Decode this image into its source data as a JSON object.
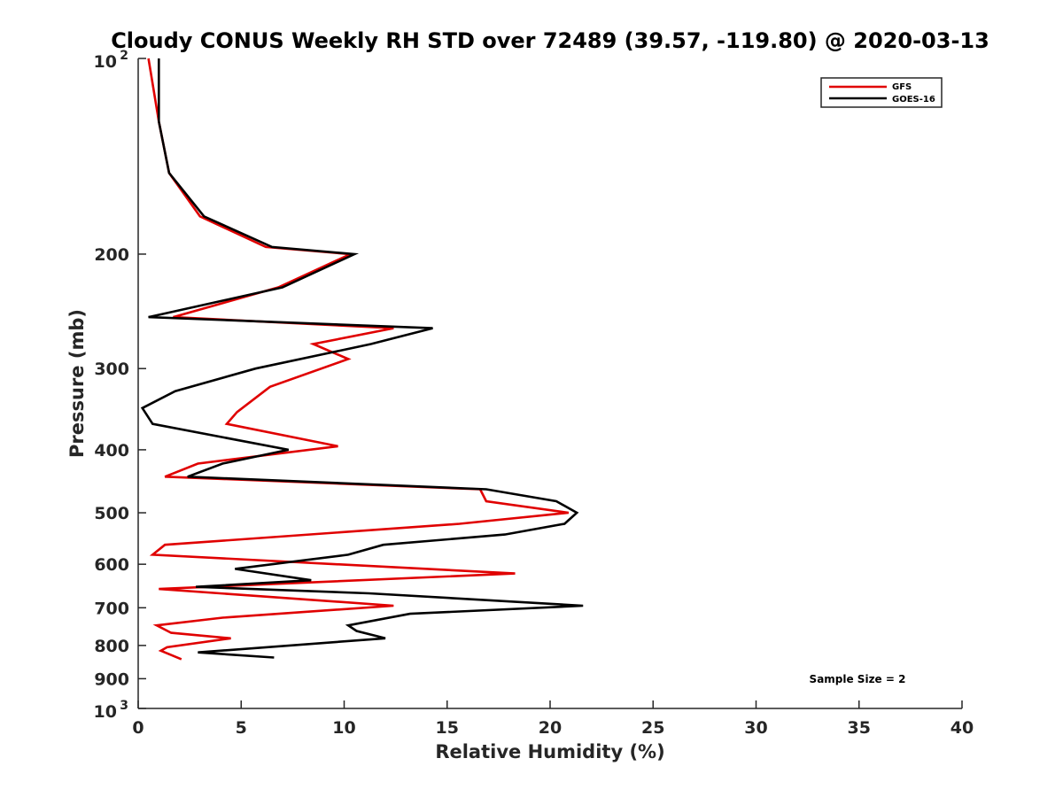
{
  "chart_data": {
    "type": "line",
    "title": "Cloudy CONUS Weekly RH STD over 72489 (39.57, -119.80) @ 2020-03-13",
    "xlabel": "Relative Humidity (%)",
    "ylabel": "Pressure (mb)",
    "xlim": [
      0,
      40
    ],
    "ylim": [
      100,
      1000
    ],
    "y_scale": "log",
    "y_reversed": true,
    "x_ticks": [
      "0",
      "5",
      "10",
      "15",
      "20",
      "25",
      "30",
      "35",
      "40"
    ],
    "y_ticks": [
      {
        "value": 100,
        "base": "10",
        "exp": "2"
      },
      {
        "value": 200,
        "label": "200"
      },
      {
        "value": 300,
        "label": "300"
      },
      {
        "value": 400,
        "label": "400"
      },
      {
        "value": 500,
        "label": "500"
      },
      {
        "value": 600,
        "label": "600"
      },
      {
        "value": 700,
        "label": "700"
      },
      {
        "value": 800,
        "label": "800"
      },
      {
        "value": 900,
        "label": "900"
      },
      {
        "value": 1000,
        "base": "10",
        "exp": "3"
      }
    ],
    "grid": false,
    "legend_position": "top-right",
    "annotation": "Sample Size = 2",
    "series": [
      {
        "name": "GFS",
        "color": "#e00000",
        "points": [
          [
            0.5,
            100
          ],
          [
            1.0,
            125
          ],
          [
            1.5,
            150
          ],
          [
            3.0,
            175
          ],
          [
            6.2,
            195
          ],
          [
            10.3,
            200
          ],
          [
            6.8,
            225
          ],
          [
            1.7,
            250
          ],
          [
            12.4,
            260
          ],
          [
            8.5,
            275
          ],
          [
            10.2,
            290
          ],
          [
            6.4,
            320
          ],
          [
            4.8,
            350
          ],
          [
            4.3,
            365
          ],
          [
            9.7,
            395
          ],
          [
            2.9,
            420
          ],
          [
            1.3,
            440
          ],
          [
            16.6,
            460
          ],
          [
            16.9,
            480
          ],
          [
            20.9,
            500
          ],
          [
            15.6,
            520
          ],
          [
            1.3,
            560
          ],
          [
            0.7,
            580
          ],
          [
            18.3,
            620
          ],
          [
            1.0,
            655
          ],
          [
            12.4,
            695
          ],
          [
            4.1,
            725
          ],
          [
            0.9,
            745
          ],
          [
            1.6,
            765
          ],
          [
            4.5,
            780
          ],
          [
            1.4,
            805
          ],
          [
            1.1,
            815
          ],
          [
            2.1,
            840
          ]
        ]
      },
      {
        "name": "GOES-16",
        "color": "#000000",
        "points": [
          [
            1.0,
            100
          ],
          [
            1.0,
            125
          ],
          [
            1.5,
            150
          ],
          [
            3.2,
            175
          ],
          [
            6.5,
            195
          ],
          [
            10.5,
            200
          ],
          [
            7.0,
            225
          ],
          [
            0.5,
            250
          ],
          [
            14.3,
            260
          ],
          [
            11.3,
            275
          ],
          [
            5.7,
            300
          ],
          [
            1.8,
            325
          ],
          [
            0.2,
            345
          ],
          [
            0.7,
            365
          ],
          [
            7.3,
            400
          ],
          [
            4.1,
            420
          ],
          [
            2.4,
            440
          ],
          [
            16.9,
            460
          ],
          [
            20.3,
            480
          ],
          [
            21.3,
            500
          ],
          [
            20.7,
            520
          ],
          [
            17.8,
            540
          ],
          [
            11.9,
            560
          ],
          [
            10.2,
            580
          ],
          [
            4.7,
            610
          ],
          [
            8.4,
            635
          ],
          [
            2.8,
            650
          ],
          [
            11.2,
            665
          ],
          [
            21.6,
            695
          ],
          [
            13.2,
            715
          ],
          [
            10.2,
            745
          ],
          [
            10.6,
            760
          ],
          [
            12.0,
            780
          ],
          [
            2.9,
            820
          ],
          [
            6.6,
            835
          ]
        ]
      }
    ]
  }
}
